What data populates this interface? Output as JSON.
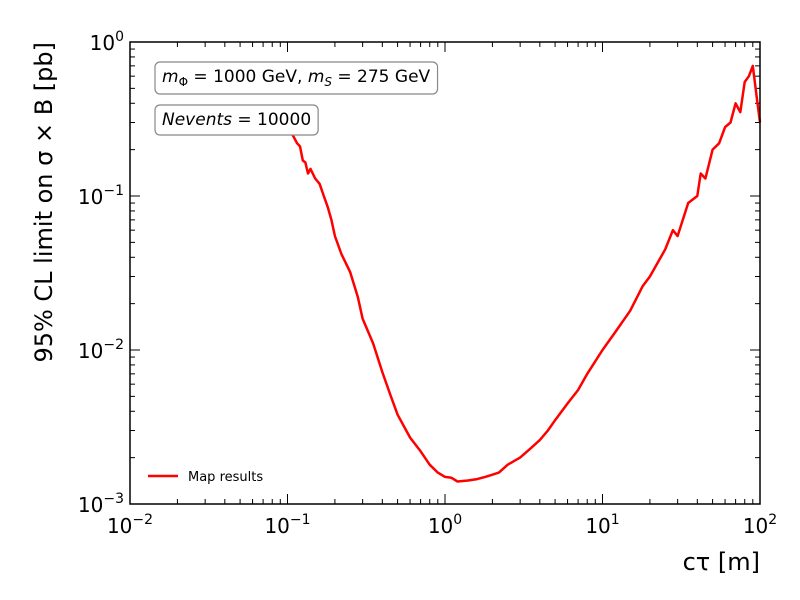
{
  "chart_data": {
    "type": "line",
    "title": "",
    "xlabel": "cτ [m]",
    "ylabel": "95% CL limit on σ × B [pb]",
    "xscale": "log",
    "yscale": "log",
    "xlim": [
      0.01,
      100
    ],
    "ylim": [
      0.001,
      1
    ],
    "grid": false,
    "x_ticks": [
      {
        "value": 0.01,
        "base": "10",
        "exp": "−2"
      },
      {
        "value": 0.1,
        "base": "10",
        "exp": "−1"
      },
      {
        "value": 1,
        "base": "10",
        "exp": "0"
      },
      {
        "value": 10,
        "base": "10",
        "exp": "1"
      },
      {
        "value": 100,
        "base": "10",
        "exp": "2"
      }
    ],
    "y_ticks": [
      {
        "value": 0.001,
        "base": "10",
        "exp": "−3"
      },
      {
        "value": 0.01,
        "base": "10",
        "exp": "−2"
      },
      {
        "value": 0.1,
        "base": "10",
        "exp": "−1"
      },
      {
        "value": 1,
        "base": "10",
        "exp": "0"
      }
    ],
    "legend_position": "bottom-left",
    "series": [
      {
        "name": "Map results",
        "color": "#ff0000",
        "x": [
          0.1,
          0.105,
          0.11,
          0.115,
          0.12,
          0.125,
          0.13,
          0.135,
          0.14,
          0.15,
          0.16,
          0.17,
          0.18,
          0.19,
          0.2,
          0.22,
          0.25,
          0.28,
          0.3,
          0.35,
          0.4,
          0.45,
          0.5,
          0.6,
          0.7,
          0.8,
          0.9,
          1.0,
          1.1,
          1.2,
          1.4,
          1.6,
          1.8,
          2.0,
          2.2,
          2.5,
          3.0,
          3.5,
          4.0,
          4.5,
          5.0,
          6.0,
          7.0,
          8.0,
          10.0,
          12.0,
          15.0,
          18.0,
          20.0,
          25.0,
          28.0,
          30.0,
          35.0,
          40.0,
          42.0,
          45.0,
          50.0,
          55.0,
          60.0,
          65.0,
          70.0,
          75.0,
          80.0,
          85.0,
          90.0,
          95.0,
          100.0
        ],
        "y": [
          0.27,
          0.26,
          0.24,
          0.22,
          0.21,
          0.17,
          0.165,
          0.14,
          0.15,
          0.13,
          0.12,
          0.1,
          0.085,
          0.07,
          0.055,
          0.042,
          0.032,
          0.022,
          0.016,
          0.011,
          0.0072,
          0.0051,
          0.0038,
          0.0027,
          0.0022,
          0.0018,
          0.0016,
          0.0015,
          0.00148,
          0.0014,
          0.00142,
          0.00145,
          0.0015,
          0.00155,
          0.0016,
          0.0018,
          0.002,
          0.0023,
          0.0026,
          0.003,
          0.0035,
          0.0045,
          0.0055,
          0.007,
          0.01,
          0.013,
          0.018,
          0.026,
          0.03,
          0.045,
          0.06,
          0.055,
          0.09,
          0.1,
          0.14,
          0.13,
          0.2,
          0.22,
          0.28,
          0.3,
          0.4,
          0.35,
          0.55,
          0.6,
          0.7,
          0.45,
          0.3
        ]
      }
    ],
    "annotations": [
      {
        "id": "mass-box",
        "segments": [
          {
            "text": "m",
            "style": "italic"
          },
          {
            "text": "Φ",
            "style": "sub"
          },
          {
            "text": " = 1000 GeV, ",
            "style": "normal"
          },
          {
            "text": "m",
            "style": "italic"
          },
          {
            "text": "S",
            "style": "sub-italic"
          },
          {
            "text": " = 275 GeV",
            "style": "normal"
          }
        ]
      },
      {
        "id": "nevents-box",
        "segments": [
          {
            "text": "Nevents",
            "style": "italic"
          },
          {
            "text": " = 10000",
            "style": "normal"
          }
        ]
      }
    ]
  }
}
